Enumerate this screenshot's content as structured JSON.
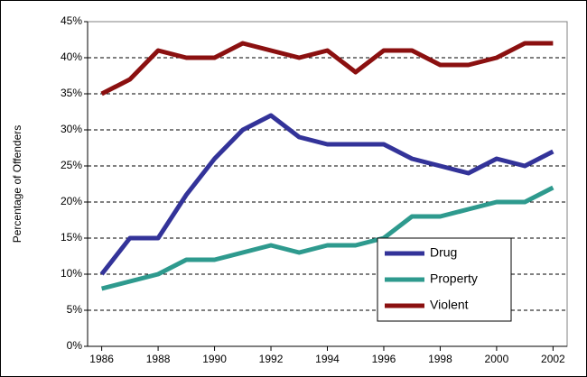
{
  "chart_data": {
    "type": "line",
    "y_label": "Percentage of Offenders",
    "x": [
      1986,
      1987,
      1988,
      1989,
      1990,
      1991,
      1992,
      1993,
      1994,
      1995,
      1996,
      1997,
      1998,
      1999,
      2000,
      2001,
      2002
    ],
    "series": [
      {
        "name": "Drug",
        "color": "#333399",
        "values": [
          10,
          15,
          15,
          21,
          26,
          30,
          32,
          29,
          28,
          28,
          28,
          26,
          25,
          24,
          26,
          25,
          27
        ]
      },
      {
        "name": "Property",
        "color": "#2e9a8e",
        "values": [
          8,
          9,
          10,
          12,
          12,
          13,
          14,
          13,
          14,
          14,
          15,
          18,
          18,
          19,
          20,
          20,
          22
        ]
      },
      {
        "name": "Violent",
        "color": "#8b1010",
        "values": [
          35,
          37,
          41,
          40,
          40,
          42,
          41,
          40,
          41,
          38,
          41,
          41,
          39,
          39,
          40,
          42,
          42
        ]
      }
    ],
    "xlim": [
      1985.5,
      2002.5
    ],
    "xticks": [
      1986,
      1988,
      1990,
      1992,
      1994,
      1996,
      1998,
      2000,
      2002
    ],
    "ylim": [
      0,
      45
    ],
    "yticks": [
      {
        "value": 0,
        "label": "0%"
      },
      {
        "value": 5,
        "label": "5%"
      },
      {
        "value": 10,
        "label": "10%"
      },
      {
        "value": 15,
        "label": "15%"
      },
      {
        "value": 20,
        "label": "20%"
      },
      {
        "value": 25,
        "label": "25%"
      },
      {
        "value": 30,
        "label": "30%"
      },
      {
        "value": 35,
        "label": "35%"
      },
      {
        "value": 40,
        "label": "40%"
      },
      {
        "value": 45,
        "label": "45%"
      }
    ],
    "grid": true,
    "legend": "lower right"
  }
}
